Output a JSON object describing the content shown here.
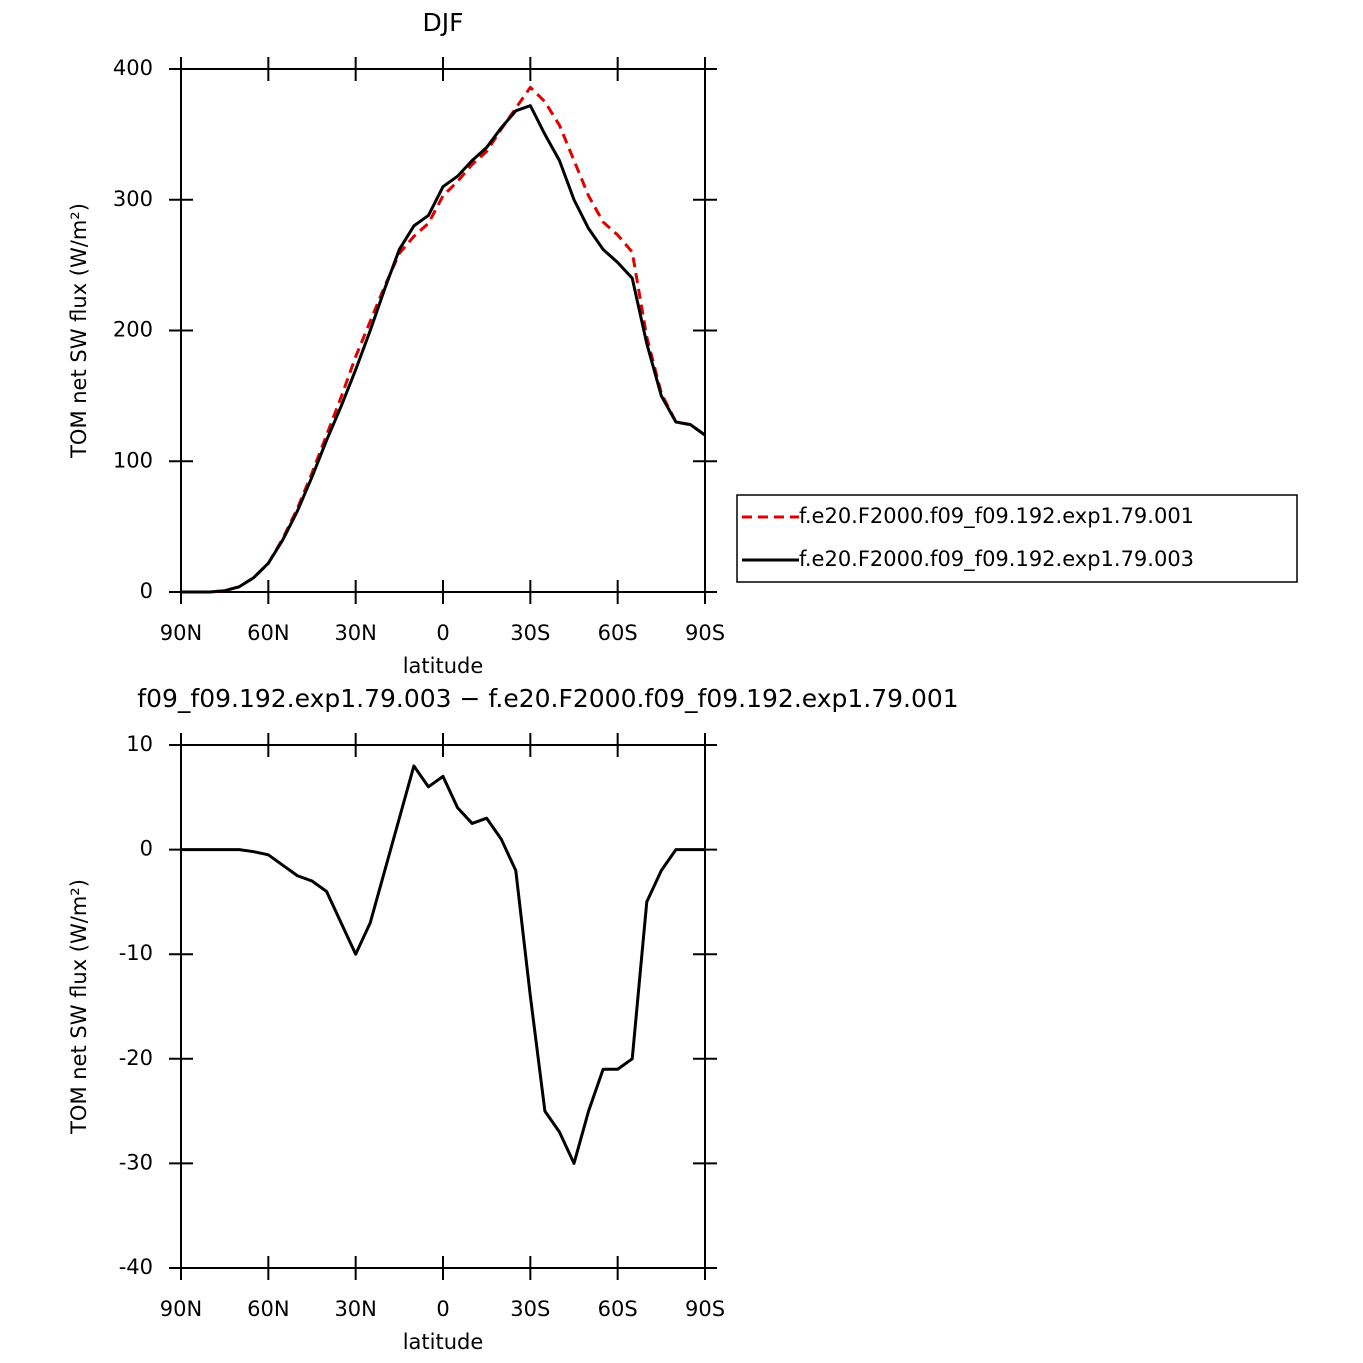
{
  "chart_data": [
    {
      "type": "line",
      "title": "DJF",
      "xlabel": "latitude",
      "ylabel": "TOM net SW flux (W/m²)",
      "x": [
        90,
        85,
        80,
        75,
        70,
        65,
        60,
        55,
        50,
        45,
        40,
        35,
        30,
        25,
        20,
        15,
        10,
        5,
        0,
        -5,
        -10,
        -15,
        -20,
        -25,
        -30,
        -35,
        -40,
        -45,
        -50,
        -55,
        -60,
        -65,
        -70,
        -75,
        -80,
        -85,
        -90
      ],
      "series": [
        {
          "name": "f.e20.F2000.f09_f09.192.exp1.79.001",
          "color": "#e00000",
          "dash": true,
          "values": [
            0,
            0,
            0,
            1,
            4,
            11,
            22,
            41,
            64,
            91,
            120,
            149,
            180,
            207,
            234,
            259,
            272,
            282,
            303,
            314,
            327,
            337,
            354,
            370,
            386,
            375,
            357,
            330,
            303,
            283,
            273,
            260,
            195,
            152,
            130,
            128,
            120
          ]
        },
        {
          "name": "f.e20.F2000.f09_f09.192.exp1.79.003",
          "color": "#000000",
          "dash": false,
          "values": [
            0,
            0,
            0,
            1,
            4,
            11,
            22,
            40,
            62,
            88,
            116,
            142,
            170,
            200,
            232,
            262,
            280,
            288,
            310,
            318,
            330,
            340,
            355,
            368,
            372,
            350,
            330,
            300,
            278,
            262,
            252,
            240,
            190,
            150,
            130,
            128,
            120
          ]
        }
      ],
      "xlim": [
        90,
        -90
      ],
      "xticks": [
        {
          "value": 90,
          "label": "90N"
        },
        {
          "value": 60,
          "label": "60N"
        },
        {
          "value": 30,
          "label": "30N"
        },
        0,
        {
          "value": -30,
          "label": "30S"
        },
        {
          "value": -60,
          "label": "60S"
        },
        {
          "value": -90,
          "label": "90S"
        }
      ],
      "ylim": [
        0,
        400
      ],
      "yticks": [
        0,
        100,
        200,
        300,
        400
      ],
      "legend": "right"
    },
    {
      "type": "line",
      "title": "f09_f09.192.exp1.79.003 − f.e20.F2000.f09_f09.192.exp1.79.001",
      "xlabel": "latitude",
      "ylabel": "TOM net SW flux (W/m²)",
      "x": [
        90,
        85,
        80,
        75,
        70,
        65,
        60,
        55,
        50,
        45,
        40,
        35,
        30,
        25,
        20,
        15,
        10,
        5,
        0,
        -5,
        -10,
        -15,
        -20,
        -25,
        -30,
        -35,
        -40,
        -45,
        -50,
        -55,
        -60,
        -65,
        -70,
        -75,
        -80,
        -85,
        -90
      ],
      "series": [
        {
          "color": "#000000",
          "dash": false,
          "values": [
            0,
            0,
            0,
            0,
            0,
            -0.2,
            -0.5,
            -1.5,
            -2.5,
            -3,
            -4,
            -7,
            -10,
            -7,
            -2,
            3,
            8,
            6,
            7,
            4,
            2.5,
            3,
            1,
            -2,
            -14,
            -25,
            -27,
            -30,
            -25,
            -21,
            -21,
            -20,
            -5,
            -2,
            0,
            0,
            0
          ]
        }
      ],
      "xlim": [
        90,
        -90
      ],
      "xticks": [
        {
          "value": 90,
          "label": "90N"
        },
        {
          "value": 60,
          "label": "60N"
        },
        {
          "value": 30,
          "label": "30N"
        },
        0,
        {
          "value": -30,
          "label": "30S"
        },
        {
          "value": -60,
          "label": "60S"
        },
        {
          "value": -90,
          "label": "90S"
        }
      ],
      "ylim": [
        -40,
        10
      ],
      "yticks": [
        -40,
        -30,
        -20,
        -10,
        0,
        10
      ]
    }
  ]
}
